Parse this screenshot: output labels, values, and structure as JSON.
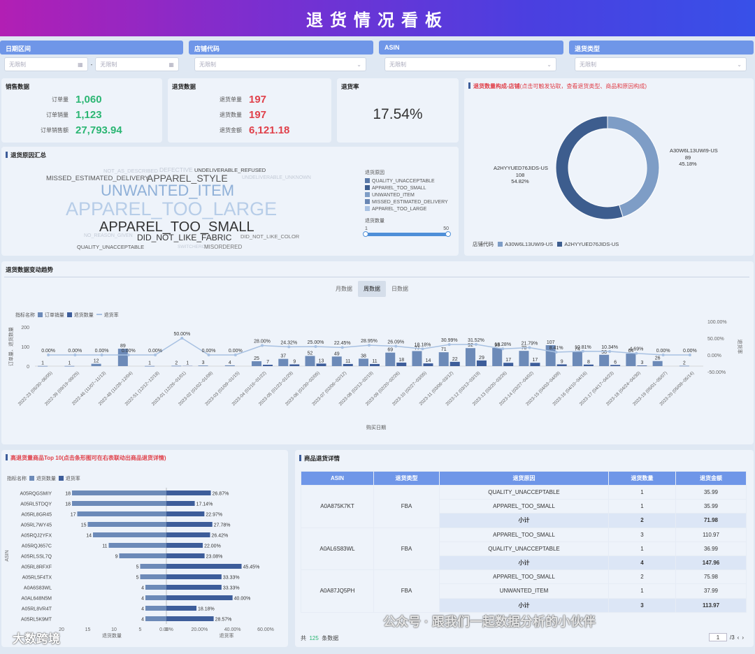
{
  "header": {
    "title": "退货情况看板"
  },
  "filters": [
    {
      "label": "日期区间",
      "start_placeholder": "无限制",
      "end_placeholder": "无限制",
      "sep": "-"
    },
    {
      "label": "店铺代码",
      "placeholder": "无限制"
    },
    {
      "label": "ASIN",
      "placeholder": "无限制"
    },
    {
      "label": "退货类型",
      "placeholder": "无限制"
    }
  ],
  "sales": {
    "title": "销售数据",
    "items": [
      {
        "label": "订单量",
        "value": "1,060"
      },
      {
        "label": "订单销量",
        "value": "1,123"
      },
      {
        "label": "订单销售额",
        "value": "27,793.94"
      }
    ]
  },
  "returns": {
    "title": "退货数据",
    "items": [
      {
        "label": "退货单量",
        "value": "197"
      },
      {
        "label": "退货数量",
        "value": "197"
      },
      {
        "label": "退货金额",
        "value": "6,121.18"
      }
    ]
  },
  "rate": {
    "title": "退货率",
    "value": "17.54%"
  },
  "colors": {
    "accent": "#6f96e8",
    "dark_bar": "#3d5d9a",
    "light_bar": "#6c8ab8",
    "green": "#2bb673",
    "red": "#e0404a"
  },
  "donut": {
    "title": "退货数量构成-店铺",
    "hint": "(点击可触发钻取，查看退货类型、商品和原因构成)",
    "legend_title": "店铺代码",
    "chart_data": {
      "type": "pie",
      "slices": [
        {
          "name": "A30W6L13UWI9-US",
          "value": 89,
          "pct": "45.18%",
          "color": "#7e9dc6"
        },
        {
          "name": "A2HYYUED76JIDS-US",
          "value": 108,
          "pct": "54.82%",
          "color": "#3d5d8e"
        }
      ]
    }
  },
  "reasons": {
    "title": "退货原因汇总",
    "legend_title": "退货原因",
    "legend": [
      "QUALITY_UNACCEPTABLE",
      "APPAREL_TOO_SMALL",
      "UNWANTED_ITEM",
      "MISSED_ESTIMATED_DELIVERY",
      "APPAREL_TOO_LARGE"
    ],
    "slider_label": "退货数量",
    "slider_min": "1",
    "slider_max": "50",
    "words": [
      "NOT_AS_DESCRIBED",
      "DEFECTIVE",
      "UNDELIVERABLE_REFUSED",
      "MISSED_ESTIMATED_DELIVERY",
      "APPAREL_STYLE",
      "UNDELIVERABLE_UNKNOWN",
      "UNWANTED_ITEM",
      "APPAREL_TOO_LARGE",
      "APPAREL_TOO_SMALL",
      "NO_REASON_GIVEN",
      "DID_NOT_LIKE_FABRIC",
      "DID_NOT_LIKE_COLOR",
      "QUALITY_UNACCEPTABLE",
      "SWITCHEROO",
      "MISORDERED"
    ]
  },
  "trend": {
    "title": "退货数据变动趋势",
    "tabs": [
      "月数据",
      "周数据",
      "日数据"
    ],
    "active_tab": 1,
    "legend_title": "指标名称",
    "xlabel": "购买日期",
    "chart_data": {
      "type": "bar",
      "left_axis_label": "订单量、退货数量",
      "right_axis_label": "退货率",
      "left_ticks": [
        "200",
        "100",
        "0"
      ],
      "right_ticks": [
        "100.00%",
        "50.00%",
        "0.00%",
        "-50.00%"
      ],
      "categories": [
        "2022-23 (05/30~06/05)",
        "2022-39 (09/19~09/25)",
        "2022-46 (11/07~11/13)",
        "2022-48 (11/28~12/04)",
        "2022-51 (12/12~12/18)",
        "2023-01 (12/26~01/01)",
        "2023-02 (01/02~01/08)",
        "2023-03 (01/09~01/15)",
        "2023-04 (01/16~01/22)",
        "2023-05 (01/23~01/29)",
        "2023-06 (01/30~02/05)",
        "2023-07 (02/06~02/12)",
        "2023-08 (02/13~02/19)",
        "2023-09 (02/20~02/26)",
        "2023-10 (02/27~03/05)",
        "2023-11 (03/06~03/12)",
        "2023-12 (03/13~03/19)",
        "2023-13 (03/20~03/26)",
        "2023-14 (03/27~04/02)",
        "2023-15 (04/03~04/09)",
        "2023-16 (04/10~04/16)",
        "2023-17 (04/17~04/23)",
        "2023-18 (04/24~04/30)",
        "2023-19 (05/01~05/07)",
        "2023-20 (05/08~05/14)"
      ],
      "series": [
        {
          "name": "订单销量",
          "values": [
            1,
            1,
            12,
            89,
            1,
            2,
            3,
            4,
            25,
            37,
            52,
            49,
            38,
            69,
            77,
            71,
            92,
            93,
            78,
            107,
            74,
            58,
            64,
            26,
            2
          ]
        },
        {
          "name": "退货数量",
          "values": [
            0,
            0,
            0,
            0,
            0,
            1,
            0,
            0,
            7,
            9,
            13,
            11,
            11,
            18,
            14,
            22,
            29,
            17,
            17,
            9,
            8,
            6,
            3,
            0,
            0
          ]
        },
        {
          "name": "退货率",
          "values": [
            "0.00%",
            "0.00%",
            "0.00%",
            "0.00%",
            "0.00%",
            "50.00%",
            "0.00%",
            "0.00%",
            "28.00%",
            "24.32%",
            "25.00%",
            "22.45%",
            "28.95%",
            "26.09%",
            "18.18%",
            "30.99%",
            "31.52%",
            "18.28%",
            "21.79%",
            "8.41%",
            "10.81%",
            "10.34%",
            "4.69%",
            "0.00%",
            "0.00%"
          ]
        }
      ]
    }
  },
  "top10": {
    "title": "高退货量商品Top 10",
    "hint": "(点击条形图可在右表联动出商品退货详情)",
    "legend_title": "指标名称",
    "legend": [
      "退货数量",
      "退货率"
    ],
    "ylabel": "ASIN",
    "xlabel_left": "退货数量",
    "xlabel_right": "退货率",
    "left_ticks": [
      "20",
      "15",
      "10",
      "5",
      "0"
    ],
    "right_ticks": [
      "0.00%",
      "20.00%",
      "40.00%",
      "60.00%"
    ],
    "chart_data": {
      "type": "bar",
      "categories": [
        "A05RQGSMIY",
        "A05RL5TDQY",
        "A05RL8GR45",
        "A05RL7WY45",
        "A05RQJ2YFX",
        "A05RQJ657C",
        "A05RLSSL7Q",
        "A05RL8RFXF",
        "A05RL5F4TX",
        "A0A6S83WL",
        "A0AL648N5M",
        "A05RL8VR4T",
        "A05RL5K9MT"
      ],
      "series": [
        {
          "name": "退货数量",
          "values": [
            18,
            18,
            17,
            15,
            14,
            11,
            9,
            5,
            5,
            4,
            4,
            4,
            4
          ]
        },
        {
          "name": "退货率",
          "values": [
            26.87,
            17.14,
            22.97,
            27.78,
            26.42,
            22.0,
            23.08,
            45.45,
            33.33,
            33.33,
            40.0,
            18.18,
            28.57
          ],
          "labels": [
            "26.87%",
            "17.14%",
            "22.97%",
            "27.78%",
            "26.42%",
            "22.00%",
            "23.08%",
            "45.45%",
            "33.33%",
            "33.33%",
            "40.00%",
            "18.18%",
            "28.57%"
          ]
        }
      ]
    }
  },
  "details": {
    "title": "商品退货详情",
    "columns": [
      "ASIN",
      "退货类型",
      "退货原因",
      "退货数量",
      "退货金额"
    ],
    "groups": [
      {
        "asin": "A0A875K7KT",
        "type": "FBA",
        "rows": [
          [
            "QUALITY_UNACCEPTABLE",
            "1",
            "35.99"
          ],
          [
            "APPAREL_TOO_SMALL",
            "1",
            "35.99"
          ],
          [
            "小计",
            "2",
            "71.98"
          ]
        ]
      },
      {
        "asin": "A0AL6S83WL",
        "type": "FBA",
        "rows": [
          [
            "APPAREL_TOO_SMALL",
            "3",
            "110.97"
          ],
          [
            "QUALITY_UNACCEPTABLE",
            "1",
            "36.99"
          ],
          [
            "小计",
            "4",
            "147.96"
          ]
        ]
      },
      {
        "asin": "A0A87JQ5PH",
        "type": "FBA",
        "rows": [
          [
            "APPAREL_TOO_SMALL",
            "2",
            "75.98"
          ],
          [
            "UNWANTED_ITEM",
            "1",
            "37.99"
          ],
          [
            "小计",
            "3",
            "113.97"
          ]
        ]
      }
    ],
    "footer_prefix": "共",
    "footer_count": "125",
    "footer_suffix": "条数据",
    "page": "1",
    "pages": "/3"
  },
  "watermarks": {
    "left": "大数跨境",
    "right": "公众号 · 跟我们一起数据分析的小伙伴"
  }
}
